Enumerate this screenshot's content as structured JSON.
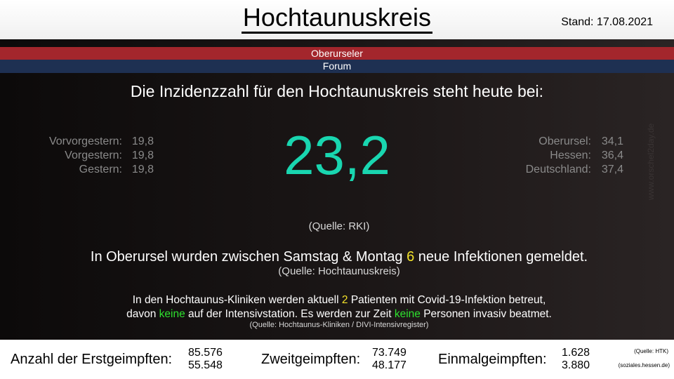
{
  "header": {
    "title": "Hochtaunuskreis",
    "stand": "Stand: 17.08.2021"
  },
  "banner": {
    "line1": "Oberurseler",
    "line2": "Forum",
    "colors": {
      "line1": "#a3262c",
      "line2": "#1e3052"
    }
  },
  "headline": "Die Inzidenzzahl für den Hochtaunuskreis steht heute bei:",
  "incidence": {
    "value": "23,2",
    "color": "#19d6b0",
    "source": "(Quelle: RKI)"
  },
  "history": [
    {
      "label": "Vorvorgestern:",
      "value": "19,8"
    },
    {
      "label": "Vorgestern:",
      "value": "19,8"
    },
    {
      "label": "Gestern:",
      "value": "19,8"
    }
  ],
  "comparison": [
    {
      "label": "Oberursel:",
      "value": "34,1"
    },
    {
      "label": "Hessen:",
      "value": "36,4"
    },
    {
      "label": "Deutschland:",
      "value": "37,4"
    }
  ],
  "infections": {
    "pre": "In Oberursel wurden zwischen Samstag & Montag ",
    "count": "6",
    "post": " neue Infektionen gemeldet.",
    "source": "(Quelle: Hochtaunuskreis)"
  },
  "clinics": {
    "l1a": "In den Hochtaunus-Kliniken werden aktuell ",
    "patients": "2",
    "l1b": " Patienten mit Covid-19-Infektion betreut,",
    "l2a": "davon ",
    "icu": "keine",
    "l2b": " auf der Intensivstation.  Es werden zur Zeit ",
    "vent": "keine",
    "l2c": " Personen invasiv beatmet.",
    "source": "(Quelle: Hochtaunus-Kliniken / DIVI-Intensivregister)"
  },
  "watermark": "www.orschel2day.de",
  "vaccination": {
    "first_label": "Anzahl der Erstgeimpften:",
    "first": [
      "85.576",
      "55.548"
    ],
    "second_label": "Zweitgeimpften:",
    "second": [
      "73.749",
      "48.177"
    ],
    "single_label": "Einmalgeimpften:",
    "single": [
      "1.628",
      "3.880"
    ],
    "source1": "(Quelle: HTK)",
    "source2": "(soziales.hessen.de)"
  }
}
